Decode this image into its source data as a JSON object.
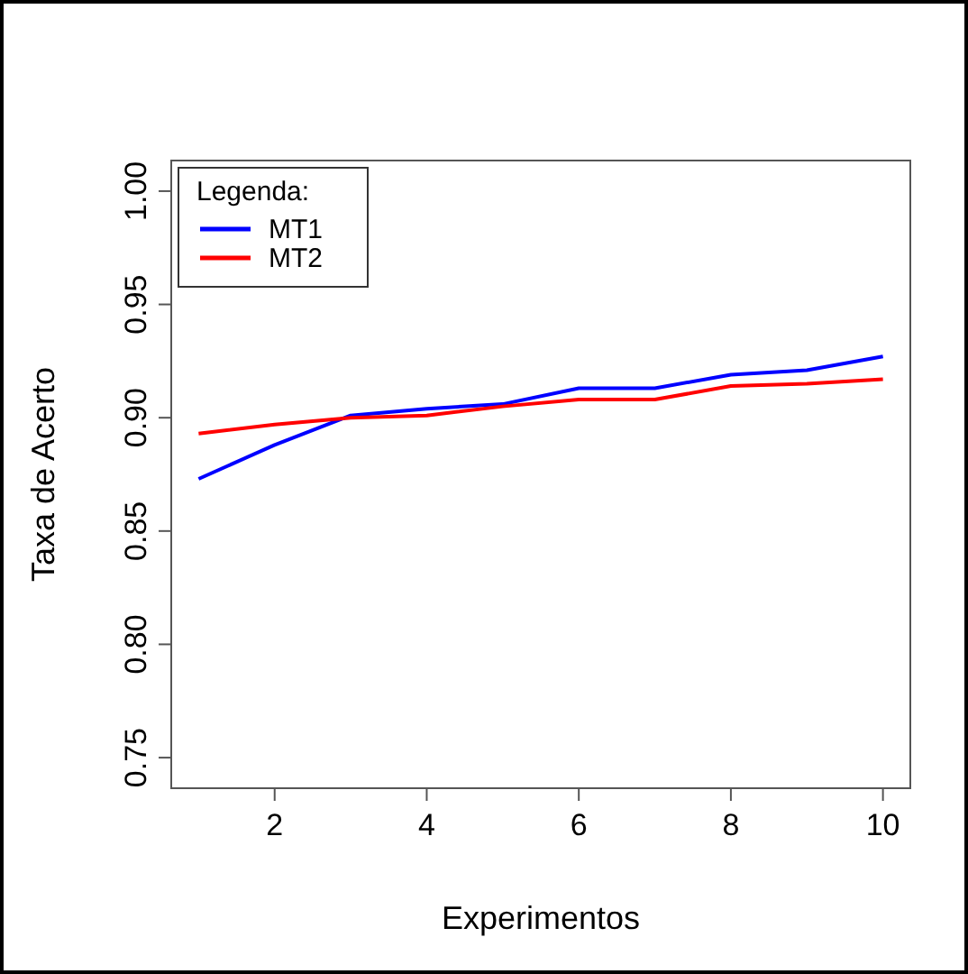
{
  "chart_data": {
    "type": "line",
    "xlabel": "Experimentos",
    "ylabel": "Taxa de Acerto",
    "legend_title": "Legenda:",
    "legend": "top left",
    "grid": false,
    "line_style": "solid",
    "x": [
      1,
      2,
      3,
      4,
      5,
      6,
      7,
      8,
      9,
      10
    ],
    "xlim": [
      0.64,
      10.36
    ],
    "ylim": [
      0.7365,
      1.0135
    ],
    "xticks": [
      2,
      4,
      6,
      8,
      10
    ],
    "yticks": [
      {
        "value": 0.75,
        "label": "0.75"
      },
      {
        "value": 0.8,
        "label": "0.80"
      },
      {
        "value": 0.85,
        "label": "0.85"
      },
      {
        "value": 0.9,
        "label": "0.90"
      },
      {
        "value": 0.95,
        "label": "0.95"
      },
      {
        "value": 1,
        "label": "1.00"
      }
    ],
    "series": [
      {
        "name": "MT1",
        "color": "#0000ff",
        "values": [
          0.873,
          0.888,
          0.901,
          0.904,
          0.906,
          0.913,
          0.913,
          0.919,
          0.921,
          0.927
        ]
      },
      {
        "name": "MT2",
        "color": "#ff0000",
        "values": [
          0.893,
          0.897,
          0.9,
          0.901,
          0.905,
          0.908,
          0.908,
          0.914,
          0.915,
          0.917
        ]
      }
    ]
  }
}
